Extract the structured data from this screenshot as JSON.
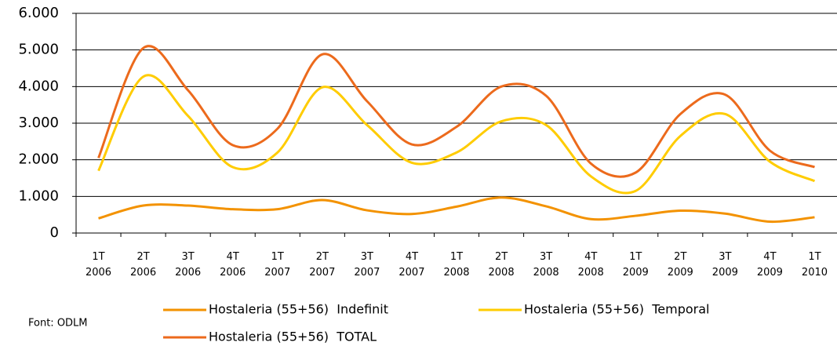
{
  "chart_data": {
    "type": "line",
    "categories": [
      "1T 2006",
      "2T 2006",
      "3T 2006",
      "4T 2006",
      "1T 2007",
      "2T 2007",
      "3T 2007",
      "4T 2007",
      "1T 2008",
      "2T 2008",
      "3T 2008",
      "4T 2008",
      "1T 2009",
      "2T 2009",
      "3T 2009",
      "4T 2009",
      "1T 2010"
    ],
    "series": [
      {
        "name": "Hostaleria (55+56)  Indefinit",
        "color": "#f39200",
        "values": [
          400,
          750,
          750,
          650,
          650,
          900,
          620,
          520,
          720,
          970,
          730,
          380,
          470,
          610,
          530,
          310,
          430
        ]
      },
      {
        "name": "Hostaleria (55+56)  Temporal",
        "color": "#ffcc00",
        "values": [
          1700,
          4270,
          3200,
          1800,
          2200,
          3980,
          2950,
          1920,
          2200,
          3050,
          2950,
          1550,
          1150,
          2650,
          3250,
          1950,
          1420
        ]
      },
      {
        "name": "Hostaleria (55+56)  TOTAL",
        "color": "#ec6a1c",
        "values": [
          2050,
          5050,
          3900,
          2400,
          2850,
          4880,
          3600,
          2420,
          2900,
          4000,
          3750,
          1900,
          1650,
          3250,
          3780,
          2250,
          1800
        ]
      }
    ],
    "ylim": [
      0,
      6000
    ],
    "yticks": [
      0,
      {
        "value": 1000,
        "label": "1.000"
      },
      {
        "value": 2000,
        "label": "2.000"
      },
      {
        "value": 3000,
        "label": "3.000"
      },
      {
        "value": 4000,
        "label": "4.000"
      },
      {
        "value": 5000,
        "label": "5.000"
      },
      {
        "value": 6000,
        "label": "6.000"
      }
    ],
    "grid": true,
    "source": "Font: ODLM"
  }
}
